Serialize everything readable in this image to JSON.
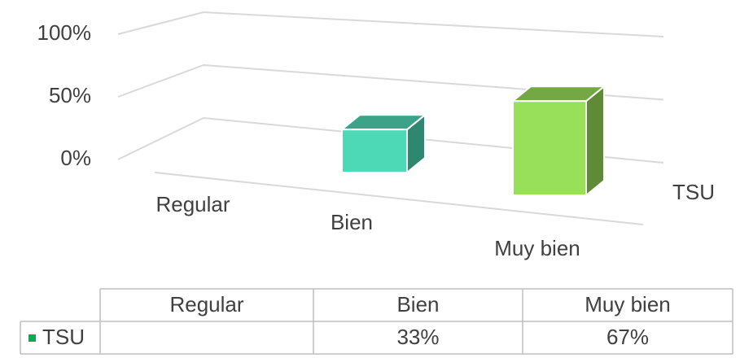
{
  "chart_data": {
    "type": "bar3d",
    "categories": [
      "Regular",
      "Bien",
      "Muy bien"
    ],
    "series": [
      {
        "name": "TSU",
        "color": "#00b050",
        "colors": [
          "#4dd9b5",
          "#4dd9b5",
          "#99e05a"
        ],
        "values": [
          null,
          33,
          67
        ],
        "value_labels": [
          null,
          "33%",
          "67%"
        ]
      }
    ],
    "ylim": [
      0,
      100
    ],
    "yticks": [
      {
        "value": 0,
        "label": "0%"
      },
      {
        "value": 50,
        "label": "50%"
      },
      {
        "value": 100,
        "label": "100%"
      }
    ],
    "grid": true,
    "data_table": true
  }
}
